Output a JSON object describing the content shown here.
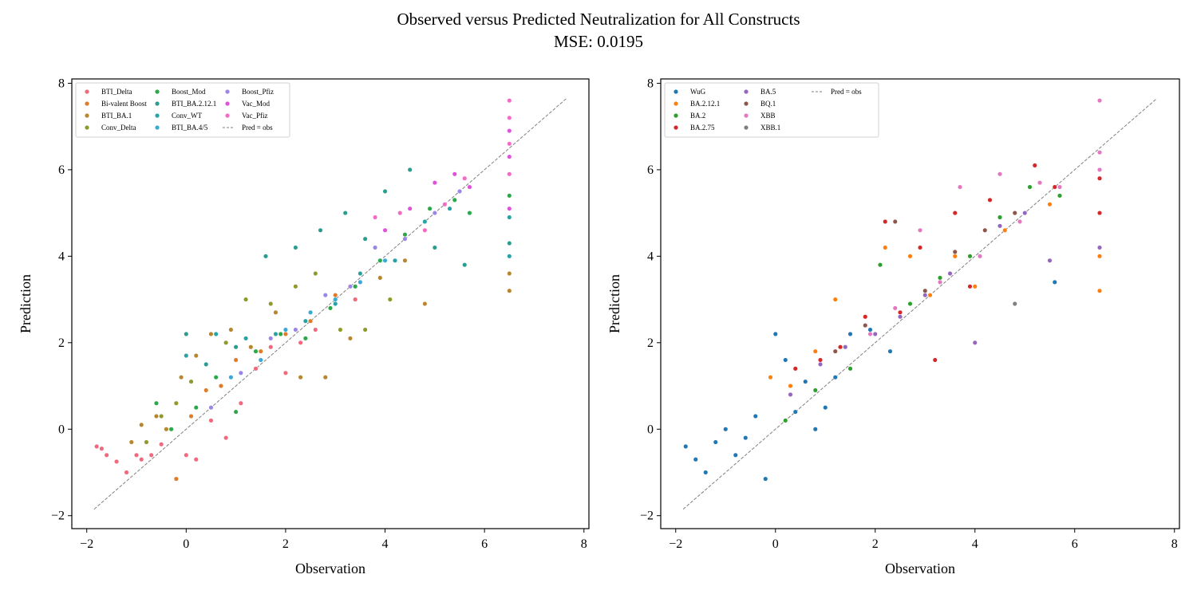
{
  "figure": {
    "title": "Observed versus Predicted Neutralization for All Constructs",
    "subtitle": "MSE: 0.0195"
  },
  "chart_data": [
    {
      "type": "scatter",
      "xlabel": "Observation",
      "ylabel": "Prediction",
      "xlim": [
        -2.3,
        8.1
      ],
      "ylim": [
        -2.3,
        8.1
      ],
      "xticks": [
        -2,
        0,
        2,
        4,
        6,
        8
      ],
      "yticks": [
        -2,
        0,
        2,
        4,
        6,
        8
      ],
      "legend_position": "upper-left",
      "reference_line": {
        "name": "Pred = obs",
        "x": [
          -1.85,
          7.65
        ],
        "y": [
          -1.85,
          7.65
        ],
        "color": "#808080"
      },
      "series": [
        {
          "name": "BTI_Delta",
          "color": "#f0697c",
          "x": [
            -1.8,
            -1.7,
            -1.6,
            -1.4,
            -1.2,
            -1.0,
            -0.9,
            -0.7,
            -0.5,
            -0.3,
            0.0,
            0.2,
            0.5,
            0.8,
            1.1,
            1.4,
            1.7,
            2.0,
            2.3,
            2.6,
            3.0,
            3.4
          ],
          "y": [
            -0.4,
            -0.45,
            -0.6,
            -0.75,
            -1.0,
            -0.6,
            -0.7,
            -0.6,
            -0.35,
            0.0,
            -0.6,
            -0.7,
            0.2,
            -0.2,
            0.6,
            1.4,
            1.9,
            1.3,
            2.0,
            2.3,
            2.9,
            3.0
          ]
        },
        {
          "name": "Bi-valent Boost",
          "color": "#e07b2a",
          "x": [
            -0.2,
            0.1,
            0.4,
            0.7,
            1.0,
            1.5,
            2.0,
            2.5,
            3.0,
            3.5
          ],
          "y": [
            -1.15,
            0.3,
            0.9,
            1.0,
            1.6,
            1.8,
            2.2,
            2.5,
            3.1,
            3.6
          ]
        },
        {
          "name": "BTI_BA.1",
          "color": "#b8862e",
          "x": [
            -1.1,
            -0.9,
            -0.6,
            -0.4,
            -0.1,
            0.2,
            0.5,
            0.9,
            1.3,
            1.8,
            2.3,
            2.8,
            3.3,
            3.9,
            4.4,
            4.8,
            6.5,
            6.5
          ],
          "y": [
            -0.3,
            0.1,
            0.3,
            0.0,
            1.2,
            1.7,
            2.2,
            2.3,
            1.9,
            2.7,
            1.2,
            1.2,
            2.1,
            3.5,
            3.9,
            2.9,
            3.2,
            3.6
          ]
        },
        {
          "name": "Conv_Delta",
          "color": "#8f9a2a",
          "x": [
            -0.8,
            -0.5,
            -0.2,
            0.1,
            0.4,
            0.8,
            1.2,
            1.7,
            2.2,
            2.6,
            3.1,
            3.6,
            4.1
          ],
          "y": [
            -0.3,
            0.3,
            0.6,
            1.1,
            1.5,
            2.0,
            3.0,
            2.9,
            3.3,
            3.6,
            2.3,
            2.3,
            3.0
          ]
        },
        {
          "name": "Boost_Mod",
          "color": "#2ba84a",
          "x": [
            -0.6,
            -0.3,
            0.2,
            0.6,
            1.0,
            1.4,
            1.9,
            2.4,
            2.9,
            3.4,
            3.9,
            4.4,
            4.9,
            5.4,
            5.7,
            6.5
          ],
          "y": [
            0.6,
            0.0,
            0.5,
            1.2,
            0.4,
            1.8,
            2.2,
            2.1,
            2.8,
            3.3,
            3.9,
            4.5,
            5.1,
            5.3,
            5.0,
            5.4
          ]
        },
        {
          "name": "BTI_BA.2.12.1",
          "color": "#2a9d8f",
          "x": [
            0.0,
            0.4,
            1.0,
            1.6,
            2.2,
            2.7,
            3.2,
            3.6,
            4.0,
            4.5,
            5.0,
            5.6,
            6.5
          ],
          "y": [
            2.2,
            1.5,
            1.9,
            4.0,
            4.2,
            4.6,
            5.0,
            4.4,
            5.5,
            6.0,
            4.2,
            3.8,
            4.3
          ]
        },
        {
          "name": "Conv_WT",
          "color": "#27a3a6",
          "x": [
            0.0,
            0.6,
            1.2,
            1.8,
            2.4,
            3.0,
            3.5,
            4.2,
            4.8,
            5.3,
            6.5,
            6.5
          ],
          "y": [
            1.7,
            2.2,
            2.1,
            2.2,
            2.5,
            2.9,
            3.6,
            3.9,
            4.8,
            5.1,
            4.0,
            4.9
          ]
        },
        {
          "name": "BTI_BA.4/5",
          "color": "#3aa8d9",
          "x": [
            0.9,
            1.5,
            2.0,
            2.5,
            3.0,
            3.5,
            4.0
          ],
          "y": [
            1.2,
            1.6,
            2.3,
            2.7,
            3.0,
            3.4,
            3.9
          ]
        },
        {
          "name": "Boost_Pfiz",
          "color": "#9b86e8",
          "x": [
            0.5,
            1.1,
            1.7,
            2.2,
            2.8,
            3.3,
            3.8,
            4.4,
            5.0,
            5.5
          ],
          "y": [
            0.5,
            1.3,
            2.1,
            2.3,
            3.1,
            3.3,
            4.2,
            4.4,
            5.0,
            5.5
          ]
        },
        {
          "name": "Vac_Mod",
          "color": "#e052d9",
          "x": [
            4.0,
            4.5,
            5.0,
            5.4,
            5.7,
            6.5,
            6.5,
            6.5
          ],
          "y": [
            4.6,
            5.1,
            5.7,
            5.9,
            5.6,
            6.3,
            6.9,
            5.1
          ]
        },
        {
          "name": "Vac_Pfiz",
          "color": "#f46ac4",
          "x": [
            3.8,
            4.3,
            4.8,
            5.2,
            5.6,
            6.5,
            6.5,
            6.5,
            6.5
          ],
          "y": [
            4.9,
            5.0,
            4.6,
            5.2,
            5.8,
            7.6,
            7.2,
            6.6,
            5.9
          ]
        }
      ]
    },
    {
      "type": "scatter",
      "xlabel": "Observation",
      "ylabel": "Prediction",
      "xlim": [
        -2.3,
        8.1
      ],
      "ylim": [
        -2.3,
        8.1
      ],
      "xticks": [
        -2,
        0,
        2,
        4,
        6,
        8
      ],
      "yticks": [
        -2,
        0,
        2,
        4,
        6,
        8
      ],
      "legend_position": "upper-left",
      "reference_line": {
        "name": "Pred = obs",
        "x": [
          -1.85,
          7.65
        ],
        "y": [
          -1.85,
          7.65
        ],
        "color": "#808080"
      },
      "series": [
        {
          "name": "WuG",
          "color": "#1f77b4",
          "x": [
            -1.8,
            -1.6,
            -1.4,
            -1.2,
            -1.0,
            -0.8,
            -0.6,
            -0.4,
            -0.2,
            0.0,
            0.2,
            0.4,
            0.6,
            0.8,
            1.0,
            1.2,
            1.5,
            1.9,
            2.3,
            5.6
          ],
          "y": [
            -0.4,
            -0.7,
            -1.0,
            -0.3,
            0.0,
            -0.6,
            -0.2,
            0.3,
            -1.15,
            2.2,
            1.6,
            0.4,
            1.1,
            0.0,
            0.5,
            1.2,
            2.2,
            2.3,
            1.8,
            3.4
          ]
        },
        {
          "name": "BA.2.12.1",
          "color": "#ff7f0e",
          "x": [
            -0.1,
            0.3,
            0.8,
            1.2,
            1.8,
            2.2,
            2.7,
            3.1,
            3.6,
            4.0,
            4.6,
            5.0,
            5.5,
            6.5,
            6.5
          ],
          "y": [
            1.2,
            1.0,
            1.8,
            3.0,
            2.6,
            4.2,
            4.0,
            3.1,
            4.0,
            3.3,
            4.6,
            5.0,
            5.2,
            3.2,
            4.0
          ]
        },
        {
          "name": "BA.2",
          "color": "#2ca02c",
          "x": [
            0.2,
            0.8,
            1.5,
            2.1,
            2.7,
            3.3,
            3.9,
            4.5,
            5.1,
            5.7
          ],
          "y": [
            0.2,
            0.9,
            1.4,
            3.8,
            2.9,
            3.5,
            4.0,
            4.9,
            5.6,
            5.4
          ]
        },
        {
          "name": "BA.2.75",
          "color": "#d62728",
          "x": [
            0.4,
            0.9,
            1.3,
            1.8,
            2.2,
            2.5,
            2.9,
            3.2,
            3.6,
            3.9,
            4.3,
            4.8,
            5.2,
            5.6,
            6.5,
            6.5
          ],
          "y": [
            1.4,
            1.6,
            1.9,
            2.6,
            4.8,
            2.7,
            4.2,
            1.6,
            5.0,
            3.3,
            5.3,
            5.0,
            6.1,
            5.6,
            5.0,
            5.8
          ]
        },
        {
          "name": "BA.5",
          "color": "#9467bd",
          "x": [
            0.3,
            0.9,
            1.4,
            2.0,
            2.5,
            3.0,
            3.5,
            4.0,
            4.5,
            5.0,
            5.5,
            6.5
          ],
          "y": [
            0.8,
            1.5,
            1.9,
            2.2,
            2.6,
            3.1,
            3.6,
            2.0,
            4.7,
            5.0,
            3.9,
            4.2
          ]
        },
        {
          "name": "BQ.1",
          "color": "#8c564b",
          "x": [
            1.2,
            1.8,
            2.4,
            3.0,
            3.6,
            4.2,
            4.8
          ],
          "y": [
            1.8,
            2.4,
            4.8,
            3.2,
            4.1,
            4.6,
            5.0
          ]
        },
        {
          "name": "XBB",
          "color": "#e377c2",
          "x": [
            1.9,
            2.4,
            2.9,
            3.3,
            3.7,
            4.1,
            4.5,
            4.9,
            5.3,
            5.7,
            6.5,
            6.5,
            6.5
          ],
          "y": [
            2.2,
            2.8,
            4.6,
            3.4,
            5.6,
            4.0,
            5.9,
            4.8,
            5.7,
            5.6,
            7.6,
            6.4,
            6.0
          ]
        },
        {
          "name": "XBB.1",
          "color": "#7f7f7f",
          "x": [
            4.8
          ],
          "y": [
            2.9
          ]
        }
      ]
    }
  ]
}
